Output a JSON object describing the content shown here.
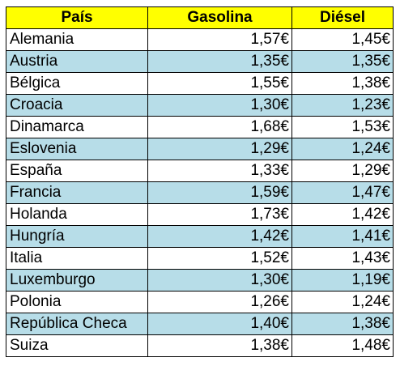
{
  "table": {
    "headers": {
      "country": "País",
      "gasoline": "Gasolina",
      "diesel": "Diésel"
    },
    "colors": {
      "header_bg": "#ffff00",
      "stripe_bg": "#b7dde8",
      "row_bg": "#ffffff",
      "border": "#000000"
    },
    "rows": [
      {
        "country": "Alemania",
        "gasoline": "1,57€",
        "diesel": "1,45€"
      },
      {
        "country": "Austria",
        "gasoline": "1,35€",
        "diesel": "1,35€"
      },
      {
        "country": "Bélgica",
        "gasoline": "1,55€",
        "diesel": "1,38€"
      },
      {
        "country": "Croacia",
        "gasoline": "1,30€",
        "diesel": "1,23€"
      },
      {
        "country": "Dinamarca",
        "gasoline": "1,68€",
        "diesel": "1,53€"
      },
      {
        "country": "Eslovenia",
        "gasoline": "1,29€",
        "diesel": "1,24€"
      },
      {
        "country": "España",
        "gasoline": "1,33€",
        "diesel": "1,29€"
      },
      {
        "country": "Francia",
        "gasoline": "1,59€",
        "diesel": "1,47€"
      },
      {
        "country": "Holanda",
        "gasoline": "1,73€",
        "diesel": "1,42€"
      },
      {
        "country": "Hungría",
        "gasoline": "1,42€",
        "diesel": "1,41€"
      },
      {
        "country": "Italia",
        "gasoline": "1,52€",
        "diesel": "1,43€"
      },
      {
        "country": "Luxemburgo",
        "gasoline": "1,30€",
        "diesel": "1,19€"
      },
      {
        "country": "Polonia",
        "gasoline": "1,26€",
        "diesel": "1,24€"
      },
      {
        "country": "República Checa",
        "gasoline": "1,40€",
        "diesel": "1,38€"
      },
      {
        "country": "Suiza",
        "gasoline": "1,38€",
        "diesel": "1,48€"
      }
    ]
  }
}
